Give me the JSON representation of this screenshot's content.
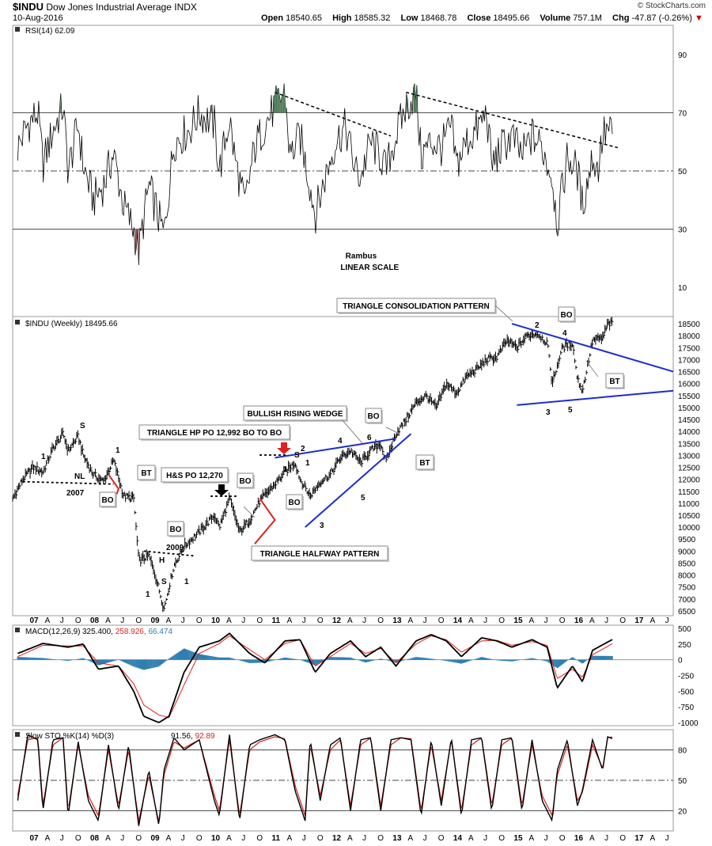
{
  "header": {
    "symbol": "$INDU",
    "name": "Dow Jones Industrial Average INDX",
    "date": "10-Aug-2016",
    "quote": [
      {
        "label": "Open",
        "value": "18540.65"
      },
      {
        "label": "High",
        "value": "18585.32"
      },
      {
        "label": "Low",
        "value": "18468.78"
      },
      {
        "label": "Close",
        "value": "18495.66"
      },
      {
        "label": "Volume",
        "value": "757.1M"
      },
      {
        "label": "Chg",
        "value": "-47.87 (-0.26%)"
      }
    ],
    "logo": "© StockCharts.com"
  },
  "chart_data": [
    {
      "type": "line",
      "panel": "RSI",
      "title": "RSI(14) 62.09",
      "ylim": [
        0,
        100
      ],
      "yticks": [
        10,
        30,
        50,
        70,
        90
      ],
      "reference_lines": [
        30,
        50,
        70
      ],
      "x_range": [
        "2006-09",
        "2017-08"
      ],
      "series": [
        {
          "name": "RSI(14)",
          "x": [
            "2006-10",
            "2006-12",
            "2007-02",
            "2007-03",
            "2007-05",
            "2007-07",
            "2007-08",
            "2007-10",
            "2007-11",
            "2008-01",
            "2008-03",
            "2008-05",
            "2008-07",
            "2008-09",
            "2008-10",
            "2008-12",
            "2009-03",
            "2009-05",
            "2009-08",
            "2009-10",
            "2010-01",
            "2010-02",
            "2010-04",
            "2010-05",
            "2010-07",
            "2010-09",
            "2010-11",
            "2011-01",
            "2011-03",
            "2011-04",
            "2011-06",
            "2011-08",
            "2011-09",
            "2011-11",
            "2012-01",
            "2012-03",
            "2012-05",
            "2012-06",
            "2012-08",
            "2012-10",
            "2012-11",
            "2013-01",
            "2013-03",
            "2013-05",
            "2013-06",
            "2013-08",
            "2013-10",
            "2013-12",
            "2014-01",
            "2014-03",
            "2014-05",
            "2014-07",
            "2014-08",
            "2014-10",
            "2014-12",
            "2015-02",
            "2015-04",
            "2015-06",
            "2015-08",
            "2015-09",
            "2015-11",
            "2016-01",
            "2016-02",
            "2016-04",
            "2016-05",
            "2016-06",
            "2016-07",
            "2016-08"
          ],
          "values": [
            58,
            66,
            70,
            52,
            64,
            72,
            50,
            66,
            52,
            40,
            45,
            56,
            38,
            30,
            22,
            45,
            28,
            60,
            64,
            70,
            66,
            50,
            68,
            55,
            38,
            58,
            66,
            72,
            77,
            55,
            62,
            45,
            35,
            48,
            60,
            65,
            50,
            48,
            60,
            55,
            50,
            62,
            72,
            77,
            55,
            60,
            58,
            65,
            52,
            60,
            64,
            70,
            52,
            58,
            62,
            55,
            62,
            58,
            48,
            32,
            55,
            50,
            38,
            55,
            50,
            62,
            64,
            62
          ]
        }
      ],
      "trendlines": [
        {
          "from": [
            "2011-01",
            77
          ],
          "to": [
            "2012-12",
            62
          ]
        },
        {
          "from": [
            "2013-03",
            77
          ],
          "to": [
            "2016-09",
            58
          ]
        }
      ],
      "annotations": [
        "Rambus",
        "LINEAR SCALE"
      ]
    },
    {
      "type": "line",
      "panel": "Price",
      "title": "$INDU (Weekly) 18495.66",
      "ylim": [
        6300,
        18800
      ],
      "yticks": [
        6500,
        7000,
        7500,
        8000,
        8500,
        9000,
        9500,
        10000,
        10500,
        11000,
        11500,
        12000,
        12500,
        13000,
        13500,
        14000,
        14500,
        15000,
        15500,
        16000,
        16500,
        17000,
        17500,
        18000,
        18500
      ],
      "xticks": [
        "07",
        "A",
        "J",
        "O",
        "08",
        "A",
        "J",
        "O",
        "09",
        "A",
        "J",
        "O",
        "10",
        "A",
        "J",
        "O",
        "11",
        "A",
        "J",
        "O",
        "12",
        "A",
        "J",
        "O",
        "13",
        "A",
        "J",
        "O",
        "14",
        "A",
        "J",
        "O",
        "15",
        "A",
        "J",
        "O",
        "16",
        "A",
        "J",
        "O",
        "17",
        "A",
        "J"
      ],
      "series": [
        {
          "name": "$INDU",
          "x": [
            "2006-09",
            "2006-11",
            "2007-01",
            "2007-03",
            "2007-05",
            "2007-07",
            "2007-08",
            "2007-10",
            "2007-11",
            "2008-01",
            "2008-03",
            "2008-05",
            "2008-07",
            "2008-09",
            "2008-10",
            "2008-12",
            "2009-01",
            "2009-03",
            "2009-05",
            "2009-07",
            "2009-10",
            "2010-01",
            "2010-02",
            "2010-04",
            "2010-06",
            "2010-08",
            "2010-10",
            "2011-01",
            "2011-03",
            "2011-05",
            "2011-06",
            "2011-08",
            "2011-10",
            "2011-12",
            "2012-02",
            "2012-04",
            "2012-06",
            "2012-08",
            "2012-10",
            "2012-11",
            "2013-01",
            "2013-03",
            "2013-05",
            "2013-07",
            "2013-09",
            "2013-11",
            "2014-01",
            "2014-03",
            "2014-05",
            "2014-07",
            "2014-09",
            "2014-11",
            "2015-01",
            "2015-03",
            "2015-05",
            "2015-07",
            "2015-08",
            "2015-10",
            "2015-12",
            "2016-01",
            "2016-02",
            "2016-04",
            "2016-06",
            "2016-07",
            "2016-08"
          ],
          "values": [
            11200,
            12000,
            12500,
            12300,
            13300,
            13900,
            13200,
            13800,
            13000,
            12200,
            11900,
            12800,
            11300,
            11200,
            8600,
            8800,
            8200,
            6600,
            8400,
            9200,
            9800,
            10500,
            10000,
            11200,
            9800,
            10300,
            11100,
            11800,
            12300,
            12700,
            12000,
            11300,
            11900,
            12200,
            12900,
            13200,
            12700,
            13200,
            13500,
            12700,
            13900,
            14500,
            15200,
            15500,
            15000,
            16000,
            15600,
            16300,
            16600,
            17000,
            17100,
            17800,
            17500,
            18000,
            18100,
            17700,
            16000,
            17500,
            17700,
            16200,
            15700,
            17800,
            17900,
            18500,
            18500
          ]
        }
      ],
      "trendlines": [
        {
          "name": "triangle consolidation top",
          "from": [
            "2014-12",
            18500
          ],
          "to": [
            "2017-08",
            16500
          ]
        },
        {
          "name": "triangle consolidation bottom",
          "from": [
            "2015-01",
            15100
          ],
          "to": [
            "2017-08",
            15700
          ]
        },
        {
          "name": "rising wedge top",
          "from": [
            "2011-01",
            12900
          ],
          "to": [
            "2013-01",
            13700
          ]
        },
        {
          "name": "rising wedge bottom",
          "from": [
            "2011-07",
            10000
          ],
          "to": [
            "2013-04",
            13900
          ]
        },
        {
          "name": "2007 neckline",
          "from": [
            "2006-11",
            11900
          ],
          "to": [
            "2008-05",
            11800
          ]
        },
        {
          "name": "2009 neckline",
          "from": [
            "2008-11",
            9000
          ],
          "to": [
            "2009-09",
            8800
          ]
        }
      ],
      "annotations": [
        "TRIANGLE CONSOLIDATION PATTERN",
        "BULLISH RISING WEDGE",
        "TRIANGLE HP PO 12,992 BO TO BO",
        "H&S PO 12,270",
        "TRIANGLE HALFWAY PATTERN",
        "BO",
        "BT",
        "NL",
        "2007",
        "2009",
        "H",
        "S",
        "1",
        "2",
        "3",
        "4",
        "5",
        "6"
      ]
    },
    {
      "type": "line",
      "panel": "MACD",
      "title": "MACD(12,26,9) 325.400, 258.926, 66.474",
      "ylim": [
        -1050,
        550
      ],
      "yticks": [
        -1000,
        -750,
        -500,
        -250,
        0,
        250,
        500
      ],
      "series": [
        {
          "name": "MACD",
          "x": [
            "2006-10",
            "2007-03",
            "2007-08",
            "2007-11",
            "2008-02",
            "2008-06",
            "2008-09",
            "2008-11",
            "2009-02",
            "2009-04",
            "2009-07",
            "2009-10",
            "2010-02",
            "2010-04",
            "2010-08",
            "2010-11",
            "2011-03",
            "2011-06",
            "2011-09",
            "2011-12",
            "2012-04",
            "2012-07",
            "2012-10",
            "2013-01",
            "2013-05",
            "2013-08",
            "2013-11",
            "2014-02",
            "2014-06",
            "2014-09",
            "2014-12",
            "2015-04",
            "2015-07",
            "2015-09",
            "2015-12",
            "2016-02",
            "2016-04",
            "2016-08"
          ],
          "values": [
            100,
            260,
            200,
            250,
            -150,
            -100,
            -500,
            -900,
            -1000,
            -900,
            -200,
            200,
            300,
            420,
            100,
            -50,
            300,
            320,
            -200,
            100,
            300,
            50,
            200,
            -100,
            300,
            400,
            300,
            50,
            350,
            300,
            200,
            320,
            200,
            -450,
            -100,
            -350,
            150,
            325
          ]
        },
        {
          "name": "signal",
          "x": [
            "2006-10",
            "2007-03",
            "2007-08",
            "2007-11",
            "2008-02",
            "2008-06",
            "2008-09",
            "2008-11",
            "2009-02",
            "2009-04",
            "2009-07",
            "2009-10",
            "2010-02",
            "2010-04",
            "2010-08",
            "2010-11",
            "2011-03",
            "2011-06",
            "2011-09",
            "2011-12",
            "2012-04",
            "2012-07",
            "2012-10",
            "2013-01",
            "2013-05",
            "2013-08",
            "2013-11",
            "2014-02",
            "2014-06",
            "2014-09",
            "2014-12",
            "2015-04",
            "2015-07",
            "2015-09",
            "2015-12",
            "2016-02",
            "2016-04",
            "2016-08"
          ],
          "values": [
            50,
            230,
            220,
            220,
            -50,
            -100,
            -380,
            -720,
            -880,
            -920,
            -400,
            100,
            260,
            380,
            160,
            0,
            260,
            320,
            -100,
            50,
            260,
            100,
            180,
            -50,
            250,
            380,
            320,
            120,
            300,
            310,
            230,
            290,
            230,
            -300,
            -150,
            -280,
            80,
            259
          ]
        }
      ]
    },
    {
      "type": "line",
      "panel": "Slow STO",
      "title": "Slow STO %K(14) %D(3) 91.56, 92.89",
      "ylim": [
        0,
        100
      ],
      "yticks": [
        20,
        50,
        80
      ],
      "reference_lines": [
        20,
        50,
        80
      ],
      "series": [
        {
          "name": "%K(14)",
          "x": [
            "2006-10",
            "2006-12",
            "2007-02",
            "2007-03",
            "2007-05",
            "2007-07",
            "2007-08",
            "2007-10",
            "2007-12",
            "2008-02",
            "2008-04",
            "2008-06",
            "2008-08",
            "2008-10",
            "2008-12",
            "2009-02",
            "2009-03",
            "2009-05",
            "2009-07",
            "2009-10",
            "2010-01",
            "2010-02",
            "2010-04",
            "2010-06",
            "2010-08",
            "2010-10",
            "2011-01",
            "2011-03",
            "2011-05",
            "2011-07",
            "2011-08",
            "2011-10",
            "2011-12",
            "2012-02",
            "2012-04",
            "2012-06",
            "2012-08",
            "2012-10",
            "2012-12",
            "2013-02",
            "2013-04",
            "2013-06",
            "2013-08",
            "2013-10",
            "2013-12",
            "2014-02",
            "2014-04",
            "2014-06",
            "2014-08",
            "2014-10",
            "2014-12",
            "2015-02",
            "2015-04",
            "2015-06",
            "2015-08",
            "2015-09",
            "2015-11",
            "2016-01",
            "2016-02",
            "2016-04",
            "2016-06",
            "2016-07",
            "2016-08"
          ],
          "values": [
            30,
            95,
            90,
            20,
            90,
            92,
            15,
            88,
            30,
            10,
            85,
            20,
            85,
            5,
            60,
            5,
            60,
            92,
            80,
            90,
            30,
            15,
            95,
            10,
            85,
            90,
            95,
            90,
            40,
            10,
            90,
            30,
            85,
            92,
            20,
            90,
            92,
            20,
            90,
            92,
            90,
            15,
            90,
            25,
            92,
            15,
            90,
            92,
            20,
            90,
            92,
            20,
            90,
            30,
            10,
            60,
            90,
            25,
            40,
            90,
            60,
            93,
            91
          ]
        },
        {
          "name": "%D(3)",
          "x": [
            "2006-10",
            "2006-12",
            "2007-02",
            "2007-03",
            "2007-05",
            "2007-07",
            "2007-08",
            "2007-10",
            "2007-12",
            "2008-02",
            "2008-04",
            "2008-06",
            "2008-08",
            "2008-10",
            "2008-12",
            "2009-02",
            "2009-03",
            "2009-05",
            "2009-07",
            "2009-10",
            "2010-01",
            "2010-02",
            "2010-04",
            "2010-06",
            "2010-08",
            "2010-10",
            "2011-01",
            "2011-03",
            "2011-05",
            "2011-07",
            "2011-08",
            "2011-10",
            "2011-12",
            "2012-02",
            "2012-04",
            "2012-06",
            "2012-08",
            "2012-10",
            "2012-12",
            "2013-02",
            "2013-04",
            "2013-06",
            "2013-08",
            "2013-10",
            "2013-12",
            "2014-02",
            "2014-04",
            "2014-06",
            "2014-08",
            "2014-10",
            "2014-12",
            "2015-02",
            "2015-04",
            "2015-06",
            "2015-08",
            "2015-09",
            "2015-11",
            "2016-01",
            "2016-02",
            "2016-04",
            "2016-06",
            "2016-07",
            "2016-08"
          ],
          "values": [
            35,
            90,
            92,
            25,
            85,
            92,
            20,
            85,
            35,
            15,
            80,
            25,
            80,
            10,
            55,
            8,
            55,
            88,
            82,
            90,
            35,
            20,
            90,
            15,
            80,
            88,
            93,
            91,
            45,
            15,
            85,
            35,
            80,
            90,
            25,
            85,
            92,
            25,
            85,
            92,
            91,
            20,
            85,
            30,
            90,
            20,
            85,
            92,
            25,
            85,
            92,
            25,
            85,
            35,
            15,
            55,
            85,
            30,
            38,
            85,
            62,
            92,
            93
          ]
        }
      ]
    }
  ],
  "colors": {
    "price_bars": "#000000",
    "macd": "#000000",
    "signal": "#e0211d",
    "histogram": "#2e7fb0",
    "sto_k": "#000000",
    "sto_d": "#cc2020",
    "pattern_blue": "#1c2bd4",
    "pattern_red": "#e02020",
    "overbought_fill": "#4e7a57"
  }
}
